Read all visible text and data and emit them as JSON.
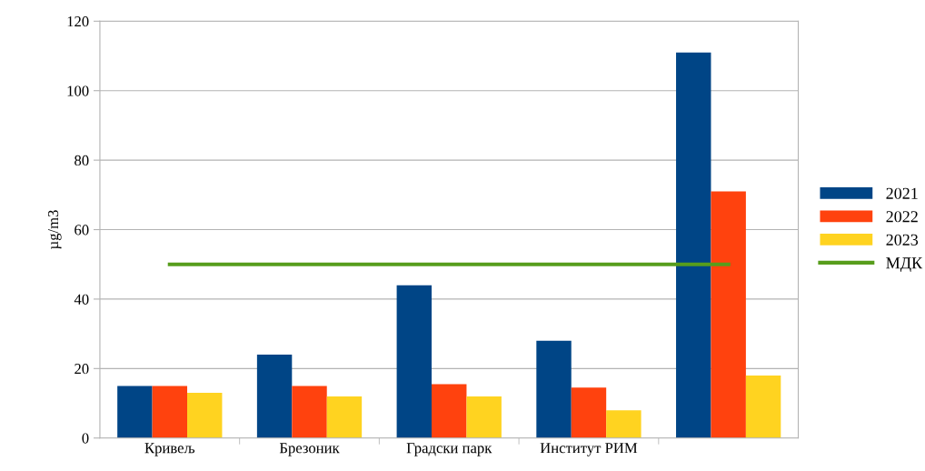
{
  "chart_data": {
    "type": "bar",
    "ylabel": "µg/m3",
    "categories": [
      "Кривељ",
      "Брезоник",
      "Градски парк",
      "Институт РИМ",
      null
    ],
    "series": [
      {
        "name": "2021",
        "color": "#004586",
        "values": [
          15,
          24,
          44,
          28,
          111
        ]
      },
      {
        "name": "2022",
        "color": "#ff420e",
        "values": [
          15,
          15,
          15.5,
          14.5,
          71
        ]
      },
      {
        "name": "2023",
        "color": "#ffd320",
        "values": [
          13,
          12,
          12,
          8,
          18
        ]
      },
      {
        "name": "МДК",
        "type": "line",
        "color": "#579d1c",
        "values": [
          50,
          50,
          50,
          50,
          50
        ]
      }
    ],
    "ylim": [
      0,
      120
    ],
    "yticks": [
      0,
      20,
      40,
      60,
      80,
      100,
      120
    ],
    "grid": "y",
    "legend": "right",
    "marker": "none"
  }
}
